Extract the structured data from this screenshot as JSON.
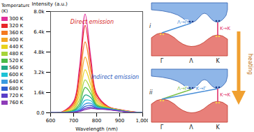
{
  "chart_data": {
    "type": "line",
    "xlabel": "Wavelength (nm)",
    "ylabel": "Intensity (a.u.)",
    "zlabel": "Temperature (K)",
    "x": [
      600,
      650,
      700,
      725,
      750,
      775,
      800,
      850,
      900,
      950,
      1000
    ],
    "xlim": [
      600,
      1000
    ],
    "xticks": [
      600,
      700,
      800,
      900,
      1000
    ],
    "ylim": [
      0,
      8000
    ],
    "yticks": [
      {
        "value": 0,
        "label": "0.0"
      },
      {
        "value": 1600,
        "label": "1.6k"
      },
      {
        "value": 3200,
        "label": "3.2k"
      },
      {
        "value": 4800,
        "label": "4.8k"
      },
      {
        "value": 6400,
        "label": "6.4k"
      },
      {
        "value": 8000,
        "label": "8.0k"
      }
    ],
    "legend": "left",
    "series": [
      {
        "name": "300 K",
        "color": "#e0309a",
        "values": [
          0,
          80,
          900,
          3500,
          7800,
          4300,
          1500,
          500,
          250,
          100,
          0
        ]
      },
      {
        "name": "320 K",
        "color": "#e8262a",
        "values": [
          0,
          70,
          800,
          3100,
          6900,
          3900,
          1400,
          480,
          240,
          90,
          0
        ]
      },
      {
        "name": "360 K",
        "color": "#f47a20",
        "values": [
          0,
          60,
          650,
          2500,
          5600,
          3300,
          1200,
          450,
          230,
          80,
          0
        ]
      },
      {
        "name": "400 K",
        "color": "#f5a623",
        "values": [
          0,
          50,
          500,
          1900,
          4400,
          2700,
          1000,
          420,
          220,
          70,
          0
        ]
      },
      {
        "name": "440 K",
        "color": "#e8d21e",
        "values": [
          0,
          40,
          380,
          1400,
          3400,
          2200,
          850,
          400,
          210,
          60,
          0
        ]
      },
      {
        "name": "480 K",
        "color": "#a6d43a",
        "values": [
          0,
          30,
          280,
          1000,
          2600,
          1800,
          700,
          380,
          200,
          50,
          0
        ]
      },
      {
        "name": "520 K",
        "color": "#4cbb47",
        "values": [
          0,
          25,
          200,
          700,
          2000,
          1500,
          600,
          360,
          190,
          45,
          0
        ]
      },
      {
        "name": "560 K",
        "color": "#22a884",
        "values": [
          0,
          20,
          150,
          500,
          1400,
          1200,
          520,
          340,
          180,
          40,
          0
        ]
      },
      {
        "name": "600 K",
        "color": "#1fc3d6",
        "values": [
          0,
          15,
          110,
          350,
          1000,
          950,
          460,
          320,
          170,
          35,
          0
        ]
      },
      {
        "name": "640 K",
        "color": "#3b9be0",
        "values": [
          0,
          12,
          80,
          250,
          700,
          750,
          410,
          300,
          160,
          30,
          0
        ]
      },
      {
        "name": "680 K",
        "color": "#2f5fd0",
        "values": [
          0,
          10,
          60,
          180,
          500,
          580,
          370,
          280,
          150,
          25,
          0
        ]
      },
      {
        "name": "720 K",
        "color": "#5a3fc8",
        "values": [
          0,
          8,
          45,
          130,
          350,
          440,
          330,
          260,
          140,
          20,
          0
        ]
      },
      {
        "name": "760 K",
        "color": "#8e3bb8",
        "values": [
          0,
          6,
          35,
          100,
          250,
          340,
          300,
          240,
          130,
          15,
          0
        ]
      }
    ],
    "annotations": [
      {
        "text": "Direct emission",
        "x": 780,
        "y": 7200,
        "color": "#d62728"
      },
      {
        "text": "Indirect emission",
        "x": 880,
        "y": 2800,
        "color": "#3060c0"
      }
    ]
  },
  "diagram": {
    "points": [
      "Γ",
      "Λ",
      "K"
    ],
    "process": "heating",
    "panels": [
      {
        "label": "i",
        "transitions": [
          {
            "label": "Λ→Γ",
            "color": "#4a8fd8"
          },
          {
            "label": "K→K",
            "color": "#e0306a"
          }
        ]
      },
      {
        "label": "ii",
        "transitions": [
          {
            "label": "Λ→Γ",
            "color": "#7cc04a"
          },
          {
            "label": "K→Γ",
            "color": "#4a8fd8"
          },
          {
            "label": "K→K",
            "color": "#e0306a"
          }
        ]
      }
    ]
  }
}
